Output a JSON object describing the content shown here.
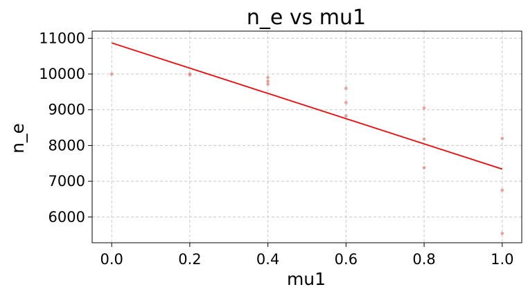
{
  "chart_data": {
    "type": "scatter",
    "title": "n_e vs mu1",
    "xlabel": "mu1",
    "ylabel": "n_e",
    "xlim": [
      -0.05,
      1.05
    ],
    "ylim": [
      5280,
      11200
    ],
    "x_ticks": [
      0.0,
      0.2,
      0.4,
      0.6,
      0.8,
      1.0
    ],
    "x_tick_labels": [
      "0.0",
      "0.2",
      "0.4",
      "0.6",
      "0.8",
      "1.0"
    ],
    "y_ticks": [
      6000,
      7000,
      8000,
      9000,
      10000,
      11000
    ],
    "y_tick_labels": [
      "6000",
      "7000",
      "8000",
      "9000",
      "10000",
      "11000"
    ],
    "grid": true,
    "grid_style": "dashed",
    "series": [
      {
        "kind": "scatter",
        "color": "#e8827a",
        "points": [
          {
            "x": 0.0,
            "y": 10000
          },
          {
            "x": 0.2,
            "y": 10000
          },
          {
            "x": 0.2,
            "y": 9980
          },
          {
            "x": 0.4,
            "y": 9900
          },
          {
            "x": 0.4,
            "y": 9800
          },
          {
            "x": 0.4,
            "y": 9720
          },
          {
            "x": 0.6,
            "y": 9600
          },
          {
            "x": 0.6,
            "y": 9200
          },
          {
            "x": 0.6,
            "y": 8830
          },
          {
            "x": 0.8,
            "y": 9050
          },
          {
            "x": 0.8,
            "y": 8180
          },
          {
            "x": 0.8,
            "y": 7380
          },
          {
            "x": 1.0,
            "y": 8200
          },
          {
            "x": 1.0,
            "y": 6750
          },
          {
            "x": 1.0,
            "y": 5540
          }
        ]
      },
      {
        "kind": "line",
        "color": "#ff0000",
        "points": [
          {
            "x": 0.0,
            "y": 10870
          },
          {
            "x": 1.0,
            "y": 7340
          }
        ]
      }
    ]
  }
}
